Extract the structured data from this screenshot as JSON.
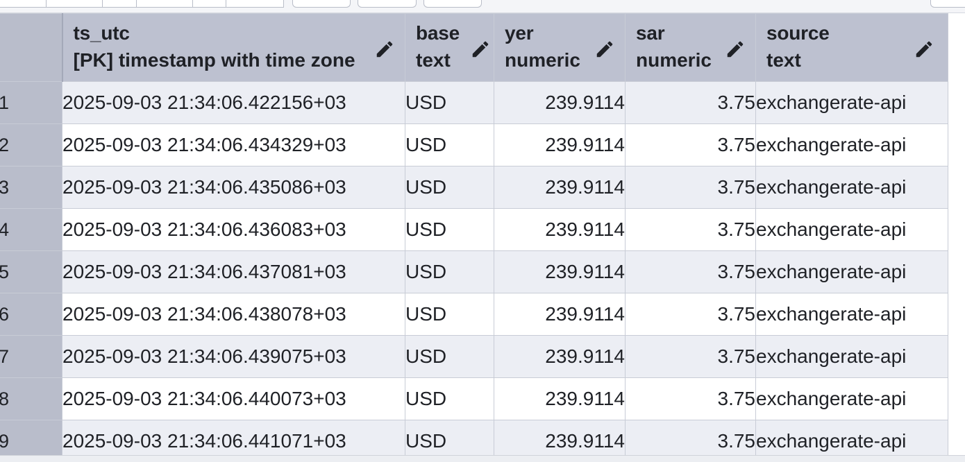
{
  "columns": [
    {
      "name": "ts_utc",
      "type": "[PK] timestamp with time zone"
    },
    {
      "name": "base",
      "type": "text"
    },
    {
      "name": "yer",
      "type": "numeric"
    },
    {
      "name": "sar",
      "type": "numeric"
    },
    {
      "name": "source",
      "type": "text"
    }
  ],
  "rows": [
    {
      "num": "1",
      "ts_utc": "2025-09-03 21:34:06.422156+03",
      "base": "USD",
      "yer": "239.9114",
      "sar": "3.75",
      "source": "exchangerate-api"
    },
    {
      "num": "2",
      "ts_utc": "2025-09-03 21:34:06.434329+03",
      "base": "USD",
      "yer": "239.9114",
      "sar": "3.75",
      "source": "exchangerate-api"
    },
    {
      "num": "3",
      "ts_utc": "2025-09-03 21:34:06.435086+03",
      "base": "USD",
      "yer": "239.9114",
      "sar": "3.75",
      "source": "exchangerate-api"
    },
    {
      "num": "4",
      "ts_utc": "2025-09-03 21:34:06.436083+03",
      "base": "USD",
      "yer": "239.9114",
      "sar": "3.75",
      "source": "exchangerate-api"
    },
    {
      "num": "5",
      "ts_utc": "2025-09-03 21:34:06.437081+03",
      "base": "USD",
      "yer": "239.9114",
      "sar": "3.75",
      "source": "exchangerate-api"
    },
    {
      "num": "6",
      "ts_utc": "2025-09-03 21:34:06.438078+03",
      "base": "USD",
      "yer": "239.9114",
      "sar": "3.75",
      "source": "exchangerate-api"
    },
    {
      "num": "7",
      "ts_utc": "2025-09-03 21:34:06.439075+03",
      "base": "USD",
      "yer": "239.9114",
      "sar": "3.75",
      "source": "exchangerate-api"
    },
    {
      "num": "8",
      "ts_utc": "2025-09-03 21:34:06.440073+03",
      "base": "USD",
      "yer": "239.9114",
      "sar": "3.75",
      "source": "exchangerate-api"
    },
    {
      "num": "9",
      "ts_utc": "2025-09-03 21:34:06.441071+03",
      "base": "USD",
      "yer": "239.9114",
      "sar": "3.75",
      "source": "exchangerate-api"
    }
  ],
  "icons": {
    "edit": "pencil-icon"
  },
  "colors": {
    "header_bg": "#bdc1d0",
    "row_alt_bg": "#eceef4",
    "row_bg": "#ffffff"
  }
}
